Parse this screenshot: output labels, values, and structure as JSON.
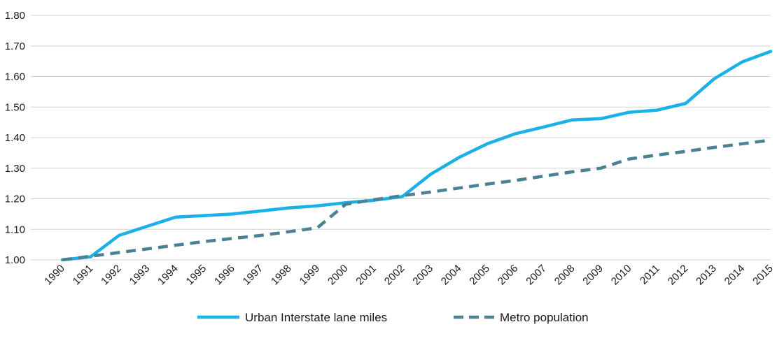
{
  "chart_data": {
    "type": "line",
    "title": "",
    "xlabel": "",
    "ylabel": "",
    "ylim": [
      1.0,
      1.8
    ],
    "yticks": [
      "1.00",
      "1.10",
      "1.20",
      "1.30",
      "1.40",
      "1.50",
      "1.60",
      "1.70",
      "1.80"
    ],
    "x": [
      "1990",
      "1991",
      "1992",
      "1993",
      "1994",
      "1995",
      "1996",
      "1997",
      "1998",
      "1999",
      "2000",
      "2001",
      "2002",
      "2003",
      "2004",
      "2005",
      "2006",
      "2007",
      "2008",
      "2009",
      "2010",
      "2011",
      "2012",
      "2013",
      "2014",
      "2015"
    ],
    "grid": true,
    "legend_position": "bottom-center",
    "series": [
      {
        "name": "Urban Interstate lane miles",
        "color": "#1ab0e8",
        "style": "solid",
        "values": [
          1.0,
          1.01,
          1.08,
          1.11,
          1.14,
          1.145,
          1.15,
          1.16,
          1.17,
          1.177,
          1.187,
          1.195,
          1.207,
          1.28,
          1.335,
          1.38,
          1.413,
          1.435,
          1.458,
          1.462,
          1.483,
          1.49,
          1.512,
          1.592,
          1.648,
          1.682
        ]
      },
      {
        "name": "Metro population",
        "color": "#4a8294",
        "style": "dashed",
        "values": [
          1.0,
          1.012,
          1.024,
          1.036,
          1.048,
          1.06,
          1.07,
          1.08,
          1.092,
          1.105,
          1.182,
          1.197,
          1.21,
          1.222,
          1.235,
          1.248,
          1.26,
          1.274,
          1.288,
          1.3,
          1.33,
          1.343,
          1.355,
          1.368,
          1.38,
          1.392
        ]
      }
    ]
  }
}
